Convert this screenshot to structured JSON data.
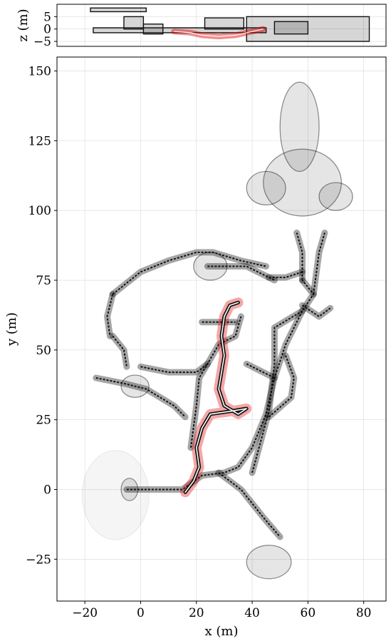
{
  "chart_data": [
    {
      "type": "scatter",
      "title": "",
      "xlabel": "",
      "ylabel": "z (m)",
      "xlim": [
        -30,
        88
      ],
      "ylim": [
        -7,
        10
      ],
      "yticks": [
        5,
        0,
        -5
      ],
      "yticklabels": [
        "5",
        "0",
        "−5"
      ],
      "grid": true,
      "series": [
        {
          "color": "#111111",
          "description_of_marks": "point map side view",
          "regions": [
            {
              "x0": -18,
              "x1": 2,
              "y0": 7,
              "y1": 8.5
            },
            {
              "x0": -17,
              "x1": 45,
              "y0": -1.5,
              "y1": 0.5
            },
            {
              "x0": -6,
              "x1": 1,
              "y0": 0,
              "y1": 5
            },
            {
              "x0": 1,
              "x1": 8,
              "y0": -2,
              "y1": 2
            },
            {
              "x0": 23,
              "x1": 37,
              "y0": 0,
              "y1": 4.5
            },
            {
              "x0": 38,
              "x1": 82,
              "y0": -5,
              "y1": 5
            },
            {
              "x0": 48,
              "x1": 60,
              "y0": -2,
              "y1": 3
            }
          ]
        },
        {
          "color": "#e00000",
          "description_of_marks": "trajectory side view",
          "path": [
            [
              12,
              -1
            ],
            [
              18,
              -1.5
            ],
            [
              22,
              -2.5
            ],
            [
              28,
              -3
            ],
            [
              34,
              -2.5
            ],
            [
              40,
              -1
            ],
            [
              44,
              0
            ]
          ]
        }
      ]
    },
    {
      "type": "scatter",
      "title": "",
      "xlabel": "x (m)",
      "ylabel": "y (m)",
      "xlim": [
        -30,
        88
      ],
      "ylim": [
        -40,
        155
      ],
      "xticks": [
        -20,
        0,
        20,
        40,
        60,
        80
      ],
      "xticklabels": [
        "−20",
        "0",
        "20",
        "40",
        "60",
        "80"
      ],
      "yticks": [
        -25,
        0,
        25,
        50,
        75,
        100,
        125,
        150
      ],
      "yticklabels": [
        "−25",
        "0",
        "25",
        "50",
        "75",
        "100",
        "125",
        "150"
      ],
      "grid": true,
      "series": [
        {
          "color": "#111111",
          "description_of_marks": "point map top view",
          "paths": [
            [
              [
                -5,
                0
              ],
              [
                15,
                0
              ],
              [
                22,
                5
              ],
              [
                30,
                6
              ],
              [
                35,
                8
              ],
              [
                40,
                15
              ],
              [
                45,
                27
              ],
              [
                48,
                40
              ],
              [
                52,
                52
              ],
              [
                58,
                64
              ],
              [
                62,
                70
              ],
              [
                58,
                75
              ]
            ],
            [
              [
                28,
                6
              ],
              [
                36,
                0
              ],
              [
                44,
                -10
              ],
              [
                50,
                -17
              ]
            ],
            [
              [
                58,
                75
              ],
              [
                58,
                85
              ],
              [
                56,
                92
              ]
            ],
            [
              [
                62,
                70
              ],
              [
                64,
                85
              ],
              [
                66,
                92
              ]
            ],
            [
              [
                40,
                6
              ],
              [
                46,
                28
              ],
              [
                48,
                45
              ],
              [
                48,
                58
              ],
              [
                58,
                64
              ]
            ],
            [
              [
                46,
                26
              ],
              [
                54,
                33
              ],
              [
                55,
                40
              ],
              [
                52,
                48
              ]
            ],
            [
              [
                58,
                66
              ],
              [
                64,
                62
              ],
              [
                68,
                65
              ]
            ],
            [
              [
                46,
                76
              ],
              [
                52,
                76
              ],
              [
                58,
                78
              ]
            ],
            [
              [
                24,
                80
              ],
              [
                38,
                80
              ],
              [
                48,
                75
              ]
            ],
            [
              [
                -10,
                70
              ],
              [
                0,
                78
              ],
              [
                10,
                82
              ],
              [
                20,
                85
              ],
              [
                26,
                85
              ],
              [
                36,
                82
              ],
              [
                45,
                80
              ]
            ],
            [
              [
                -10,
                70
              ],
              [
                -12,
                62
              ],
              [
                -11,
                55
              ]
            ],
            [
              [
                -10,
                55
              ],
              [
                -6,
                50
              ],
              [
                -5,
                44
              ]
            ],
            [
              [
                -16,
                40
              ],
              [
                -6,
                38
              ],
              [
                2,
                36
              ],
              [
                12,
                30
              ],
              [
                16,
                26
              ]
            ],
            [
              [
                0,
                44
              ],
              [
                10,
                42
              ],
              [
                20,
                42
              ],
              [
                24,
                45
              ]
            ],
            [
              [
                18,
                15
              ],
              [
                20,
                30
              ],
              [
                21,
                40
              ],
              [
                24,
                45
              ],
              [
                28,
                52
              ],
              [
                34,
                55
              ],
              [
                36,
                62
              ]
            ],
            [
              [
                22,
                60
              ],
              [
                34,
                60
              ]
            ],
            [
              [
                38,
                45
              ],
              [
                48,
                40
              ]
            ]
          ],
          "blobs": [
            {
              "cx": 58,
              "cy": 110,
              "rx": 14,
              "ry": 12
            },
            {
              "cx": 57,
              "cy": 130,
              "rx": 7,
              "ry": 16
            },
            {
              "cx": 45,
              "cy": 108,
              "rx": 7,
              "ry": 6
            },
            {
              "cx": 70,
              "cy": 105,
              "rx": 6,
              "ry": 5
            },
            {
              "cx": 46,
              "cy": -26,
              "rx": 8,
              "ry": 6
            },
            {
              "cx": -2,
              "cy": 37,
              "rx": 5,
              "ry": 4
            },
            {
              "cx": -4,
              "cy": 0,
              "rx": 3,
              "ry": 4
            },
            {
              "cx": 25,
              "cy": 80,
              "rx": 6,
              "ry": 5
            }
          ],
          "faint_blob": {
            "cx": -9,
            "cy": -2,
            "rx": 12,
            "ry": 16
          }
        },
        {
          "color": "#e00000",
          "description_of_marks": "trajectory top view",
          "path": [
            [
              16,
              -1
            ],
            [
              19,
              3
            ],
            [
              21,
              8
            ],
            [
              20,
              15
            ],
            [
              22,
              22
            ],
            [
              25,
              27
            ],
            [
              32,
              28
            ],
            [
              38,
              29
            ],
            [
              35,
              27
            ],
            [
              30,
              30
            ],
            [
              28,
              36
            ],
            [
              29,
              42
            ],
            [
              30,
              48
            ],
            [
              29,
              55
            ],
            [
              30,
              62
            ],
            [
              32,
              66
            ],
            [
              35,
              67
            ]
          ]
        }
      ]
    }
  ]
}
